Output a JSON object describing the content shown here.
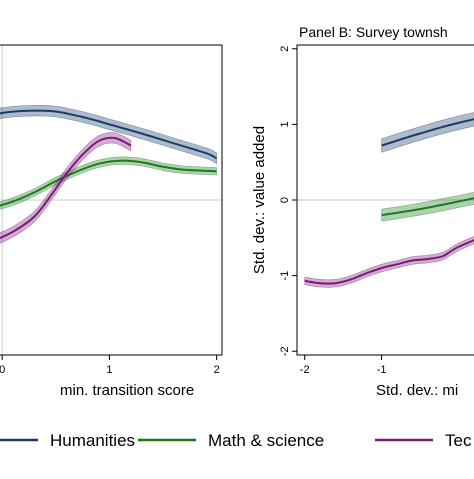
{
  "chart_data": [
    {
      "type": "line",
      "title": "",
      "xlabel": "min. transition score",
      "ylabel": "",
      "xlim": [
        -0.3,
        2.05
      ],
      "ylim": [
        -2.05,
        2.05
      ],
      "x_ticks": [
        0,
        1,
        2
      ],
      "y_ticks": [],
      "grid": false,
      "series": [
        {
          "name": "Humanities",
          "color": "#1a3d6b",
          "band": 0.07,
          "x": [
            -0.3,
            0.0,
            0.25,
            0.5,
            0.8,
            1.0,
            1.3,
            1.6,
            1.9,
            2.0
          ],
          "y": [
            1.05,
            1.15,
            1.18,
            1.17,
            1.08,
            1.0,
            0.88,
            0.75,
            0.62,
            0.55
          ]
        },
        {
          "name": "Math & science",
          "color": "#1e7a1e",
          "band": 0.05,
          "x": [
            -0.3,
            -0.1,
            0.1,
            0.3,
            0.5,
            0.7,
            0.9,
            1.1,
            1.3,
            1.5,
            1.7,
            2.0
          ],
          "y": [
            -0.12,
            -0.1,
            -0.02,
            0.1,
            0.25,
            0.38,
            0.48,
            0.52,
            0.5,
            0.44,
            0.4,
            0.38
          ]
        },
        {
          "name": "Tec",
          "color": "#7a1a7a",
          "band": 0.07,
          "x": [
            -0.3,
            -0.1,
            0.1,
            0.3,
            0.45,
            0.6,
            0.75,
            0.9,
            1.05,
            1.2
          ],
          "y": [
            -0.65,
            -0.55,
            -0.42,
            -0.22,
            0.05,
            0.35,
            0.6,
            0.78,
            0.82,
            0.72
          ]
        }
      ],
      "vline_x": 0,
      "hline_y": 0
    },
    {
      "type": "line",
      "title": "Panel B: Survey townsh",
      "xlabel": "Std. dev.: mi",
      "ylabel": "Std. dev.: value added",
      "xlim": [
        -2.1,
        0.8
      ],
      "ylim": [
        -2.05,
        2.05
      ],
      "x_ticks": [
        -2,
        -1
      ],
      "y_ticks": [
        -2,
        -1,
        0,
        1,
        2
      ],
      "grid": false,
      "series": [
        {
          "name": "Humanities",
          "color": "#1a3d6b",
          "band": 0.09,
          "x": [
            -1.0,
            -0.5,
            0.0,
            0.8
          ],
          "y": [
            0.72,
            0.88,
            1.02,
            1.2
          ]
        },
        {
          "name": "Math & science",
          "color": "#1e7a1e",
          "band": 0.08,
          "x": [
            -1.0,
            -0.5,
            0.0,
            0.8
          ],
          "y": [
            -0.2,
            -0.12,
            -0.02,
            0.15
          ]
        },
        {
          "name": "Tec",
          "color": "#7a1a7a",
          "band": 0.05,
          "x": [
            -2.0,
            -1.8,
            -1.6,
            -1.4,
            -1.2,
            -1.0,
            -0.8,
            -0.6,
            -0.4,
            -0.2,
            0.0,
            0.4,
            0.8
          ],
          "y": [
            -1.07,
            -1.1,
            -1.1,
            -1.05,
            -0.97,
            -0.9,
            -0.85,
            -0.8,
            -0.78,
            -0.74,
            -0.62,
            -0.45,
            -0.3
          ]
        }
      ],
      "vline_x": null,
      "hline_y": 0
    }
  ],
  "legend": {
    "placement": "bottom",
    "items": [
      {
        "label": "Humanities",
        "color": "#1a3d6b"
      },
      {
        "label": "Math & science",
        "color": "#1e7a1e"
      },
      {
        "label": "Tec",
        "color": "#7a1a7a"
      }
    ]
  },
  "colors": {
    "reference_line": "#cccccc",
    "frame": "#000000",
    "band_opacity": "0.35"
  }
}
